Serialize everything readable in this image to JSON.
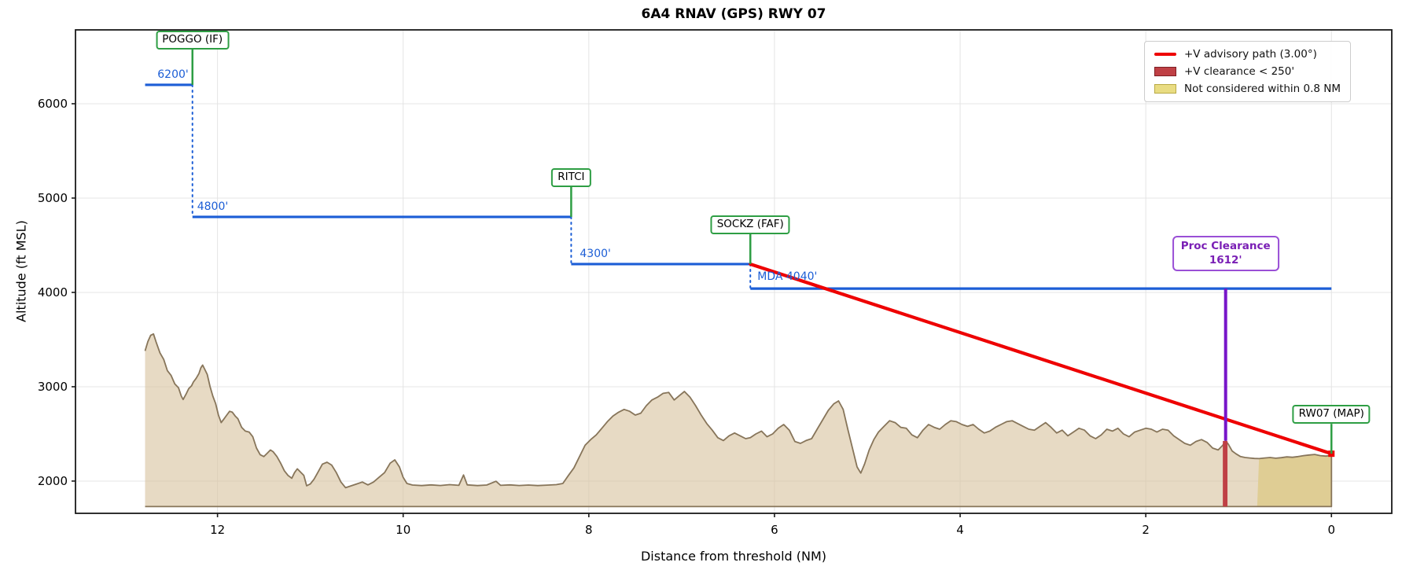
{
  "title": "6A4  RNAV (GPS) RWY 07",
  "axes": {
    "xlabel": "Distance from threshold (NM)",
    "ylabel": "Altitude (ft MSL)",
    "x_ticks": [
      12,
      10,
      8,
      6,
      4,
      2,
      0
    ],
    "y_ticks": [
      2000,
      3000,
      4000,
      5000,
      6000
    ],
    "xlim": [
      13.53,
      -0.65
    ],
    "ylim": [
      1658,
      6783
    ],
    "grid": true
  },
  "legend": {
    "position": "upper right",
    "items": [
      {
        "label": "+V advisory path (3.00°)",
        "swatch": "line",
        "fill": "#ee0000",
        "edge": "#ee0000"
      },
      {
        "label": "+V clearance < 250'",
        "swatch": "patch",
        "fill": "#bf4045",
        "edge": "#7e1f24"
      },
      {
        "label": "Not considered within 0.8 NM",
        "swatch": "patch",
        "fill": "#e9dc82",
        "edge": "#b9aa45"
      }
    ]
  },
  "colors": {
    "step_blue": "#1c5ed6",
    "fix_green": "#2e9e44",
    "advisory_red": "#ee0000",
    "band_red_fill": "#bf4045",
    "yellow_fill": "#e9dc82",
    "terrain_fill": "#d8c4a0",
    "terrain_edge": "#87755a",
    "purple": "#7715c9",
    "grid": "#e4e4e4",
    "axis": "#1a1a1a"
  },
  "chart_data": {
    "type": "line",
    "title": "6A4  RNAV (GPS) RWY 07",
    "xlabel": "Distance from threshold (NM)",
    "ylabel": "Altitude (ft MSL)",
    "x_axis_reversed": true,
    "step_segments": [
      {
        "label": "6200'",
        "from_nm": 12.78,
        "to_nm": 12.27,
        "alt_ft": 6200
      },
      {
        "label": "4800'",
        "from_nm": 12.27,
        "to_nm": 8.19,
        "alt_ft": 4800
      },
      {
        "label": "4300'",
        "from_nm": 8.19,
        "to_nm": 6.26,
        "alt_ft": 4300
      }
    ],
    "mda_segment": {
      "label": "MDA 4040'",
      "from_nm": 6.26,
      "to_nm": 0.0,
      "alt_ft": 4040
    },
    "fixes": [
      {
        "name": "POGGO (IF)",
        "nm": 12.27,
        "alt_ft": 6200
      },
      {
        "name": "RITCI",
        "nm": 8.19,
        "alt_ft": 4800
      },
      {
        "name": "SOCKZ (FAF)",
        "nm": 6.26,
        "alt_ft": 4300
      },
      {
        "name": "RW07 (MAP)",
        "nm": 0.0,
        "alt_ft": 2290
      }
    ],
    "advisory_path": {
      "angle_deg": 3.0,
      "from": {
        "nm": 6.26,
        "alt_ft": 4300
      },
      "to": {
        "nm": 0.0,
        "alt_ft": 2290
      }
    },
    "proc_clearance": {
      "label_line1": "Proc Clearance",
      "label_line2": "1612'",
      "nm": 1.14,
      "top_alt_ft": 4040,
      "bottom_alt_ft": 2428
    },
    "clearance_band": {
      "from_nm": 1.17,
      "to_nm": 1.12,
      "top_alt_ft": 2425,
      "bottom_alt_ft": 1730
    },
    "not_considered": {
      "from_nm": 0.8,
      "to_nm": 0.0
    },
    "terrain_baseline_ft": 1730,
    "terrain_profile": [
      [
        12.78,
        3380
      ],
      [
        12.75,
        3480
      ],
      [
        12.72,
        3545
      ],
      [
        12.69,
        3560
      ],
      [
        12.66,
        3470
      ],
      [
        12.62,
        3360
      ],
      [
        12.58,
        3290
      ],
      [
        12.54,
        3170
      ],
      [
        12.5,
        3120
      ],
      [
        12.46,
        3030
      ],
      [
        12.42,
        2990
      ],
      [
        12.39,
        2900
      ],
      [
        12.37,
        2865
      ],
      [
        12.34,
        2920
      ],
      [
        12.31,
        2980
      ],
      [
        12.28,
        3010
      ],
      [
        12.26,
        3050
      ],
      [
        12.23,
        3090
      ],
      [
        12.2,
        3140
      ],
      [
        12.18,
        3200
      ],
      [
        12.16,
        3230
      ],
      [
        12.13,
        3170
      ],
      [
        12.11,
        3130
      ],
      [
        12.08,
        3000
      ],
      [
        12.05,
        2900
      ],
      [
        12.02,
        2820
      ],
      [
        11.99,
        2700
      ],
      [
        11.96,
        2620
      ],
      [
        11.93,
        2660
      ],
      [
        11.9,
        2700
      ],
      [
        11.87,
        2740
      ],
      [
        11.84,
        2730
      ],
      [
        11.81,
        2690
      ],
      [
        11.78,
        2660
      ],
      [
        11.74,
        2570
      ],
      [
        11.7,
        2530
      ],
      [
        11.66,
        2520
      ],
      [
        11.62,
        2470
      ],
      [
        11.58,
        2350
      ],
      [
        11.54,
        2280
      ],
      [
        11.5,
        2260
      ],
      [
        11.46,
        2300
      ],
      [
        11.43,
        2330
      ],
      [
        11.4,
        2310
      ],
      [
        11.36,
        2260
      ],
      [
        11.32,
        2190
      ],
      [
        11.28,
        2110
      ],
      [
        11.24,
        2060
      ],
      [
        11.2,
        2030
      ],
      [
        11.17,
        2090
      ],
      [
        11.14,
        2130
      ],
      [
        11.1,
        2090
      ],
      [
        11.07,
        2060
      ],
      [
        11.04,
        1950
      ],
      [
        11.0,
        1970
      ],
      [
        10.96,
        2020
      ],
      [
        10.92,
        2090
      ],
      [
        10.87,
        2180
      ],
      [
        10.82,
        2200
      ],
      [
        10.77,
        2170
      ],
      [
        10.72,
        2090
      ],
      [
        10.67,
        1990
      ],
      [
        10.62,
        1930
      ],
      [
        10.56,
        1950
      ],
      [
        10.5,
        1970
      ],
      [
        10.44,
        1990
      ],
      [
        10.38,
        1960
      ],
      [
        10.32,
        1990
      ],
      [
        10.26,
        2040
      ],
      [
        10.2,
        2090
      ],
      [
        10.14,
        2190
      ],
      [
        10.09,
        2225
      ],
      [
        10.04,
        2150
      ],
      [
        10.0,
        2040
      ],
      [
        9.96,
        1975
      ],
      [
        9.9,
        1958
      ],
      [
        9.8,
        1952
      ],
      [
        9.7,
        1960
      ],
      [
        9.6,
        1953
      ],
      [
        9.5,
        1962
      ],
      [
        9.4,
        1955
      ],
      [
        9.35,
        2065
      ],
      [
        9.31,
        1960
      ],
      [
        9.2,
        1952
      ],
      [
        9.1,
        1958
      ],
      [
        9.0,
        1998
      ],
      [
        8.95,
        1955
      ],
      [
        8.85,
        1960
      ],
      [
        8.75,
        1953
      ],
      [
        8.65,
        1958
      ],
      [
        8.55,
        1952
      ],
      [
        8.45,
        1957
      ],
      [
        8.35,
        1962
      ],
      [
        8.28,
        1975
      ],
      [
        8.22,
        2060
      ],
      [
        8.16,
        2140
      ],
      [
        8.1,
        2260
      ],
      [
        8.04,
        2380
      ],
      [
        7.98,
        2440
      ],
      [
        7.92,
        2490
      ],
      [
        7.86,
        2560
      ],
      [
        7.8,
        2630
      ],
      [
        7.74,
        2690
      ],
      [
        7.68,
        2730
      ],
      [
        7.62,
        2760
      ],
      [
        7.56,
        2740
      ],
      [
        7.5,
        2700
      ],
      [
        7.44,
        2720
      ],
      [
        7.38,
        2800
      ],
      [
        7.32,
        2860
      ],
      [
        7.26,
        2890
      ],
      [
        7.2,
        2930
      ],
      [
        7.14,
        2940
      ],
      [
        7.08,
        2860
      ],
      [
        7.02,
        2910
      ],
      [
        6.97,
        2950
      ],
      [
        6.91,
        2890
      ],
      [
        6.85,
        2800
      ],
      [
        6.79,
        2700
      ],
      [
        6.73,
        2610
      ],
      [
        6.67,
        2540
      ],
      [
        6.61,
        2460
      ],
      [
        6.55,
        2430
      ],
      [
        6.49,
        2480
      ],
      [
        6.43,
        2510
      ],
      [
        6.37,
        2480
      ],
      [
        6.31,
        2450
      ],
      [
        6.26,
        2460
      ],
      [
        6.2,
        2500
      ],
      [
        6.14,
        2530
      ],
      [
        6.08,
        2470
      ],
      [
        6.02,
        2500
      ],
      [
        5.96,
        2560
      ],
      [
        5.9,
        2600
      ],
      [
        5.84,
        2540
      ],
      [
        5.78,
        2420
      ],
      [
        5.72,
        2400
      ],
      [
        5.66,
        2430
      ],
      [
        5.6,
        2450
      ],
      [
        5.54,
        2550
      ],
      [
        5.48,
        2650
      ],
      [
        5.42,
        2750
      ],
      [
        5.36,
        2820
      ],
      [
        5.31,
        2850
      ],
      [
        5.26,
        2760
      ],
      [
        5.21,
        2550
      ],
      [
        5.16,
        2350
      ],
      [
        5.11,
        2150
      ],
      [
        5.07,
        2085
      ],
      [
        5.03,
        2180
      ],
      [
        4.98,
        2330
      ],
      [
        4.93,
        2440
      ],
      [
        4.88,
        2520
      ],
      [
        4.82,
        2580
      ],
      [
        4.76,
        2640
      ],
      [
        4.7,
        2620
      ],
      [
        4.64,
        2570
      ],
      [
        4.58,
        2560
      ],
      [
        4.52,
        2490
      ],
      [
        4.46,
        2460
      ],
      [
        4.4,
        2540
      ],
      [
        4.34,
        2600
      ],
      [
        4.28,
        2570
      ],
      [
        4.22,
        2550
      ],
      [
        4.16,
        2600
      ],
      [
        4.1,
        2640
      ],
      [
        4.04,
        2630
      ],
      [
        3.98,
        2600
      ],
      [
        3.92,
        2580
      ],
      [
        3.86,
        2600
      ],
      [
        3.8,
        2550
      ],
      [
        3.74,
        2510
      ],
      [
        3.68,
        2530
      ],
      [
        3.62,
        2570
      ],
      [
        3.56,
        2600
      ],
      [
        3.5,
        2630
      ],
      [
        3.44,
        2640
      ],
      [
        3.38,
        2610
      ],
      [
        3.32,
        2580
      ],
      [
        3.26,
        2550
      ],
      [
        3.2,
        2540
      ],
      [
        3.14,
        2580
      ],
      [
        3.08,
        2620
      ],
      [
        3.02,
        2570
      ],
      [
        2.96,
        2510
      ],
      [
        2.9,
        2540
      ],
      [
        2.84,
        2480
      ],
      [
        2.78,
        2520
      ],
      [
        2.72,
        2560
      ],
      [
        2.66,
        2540
      ],
      [
        2.6,
        2480
      ],
      [
        2.54,
        2450
      ],
      [
        2.48,
        2490
      ],
      [
        2.42,
        2550
      ],
      [
        2.36,
        2530
      ],
      [
        2.3,
        2560
      ],
      [
        2.24,
        2500
      ],
      [
        2.18,
        2470
      ],
      [
        2.12,
        2520
      ],
      [
        2.06,
        2540
      ],
      [
        2.0,
        2560
      ],
      [
        1.94,
        2550
      ],
      [
        1.88,
        2520
      ],
      [
        1.82,
        2550
      ],
      [
        1.76,
        2540
      ],
      [
        1.7,
        2480
      ],
      [
        1.64,
        2440
      ],
      [
        1.58,
        2400
      ],
      [
        1.52,
        2380
      ],
      [
        1.46,
        2420
      ],
      [
        1.4,
        2440
      ],
      [
        1.34,
        2410
      ],
      [
        1.28,
        2350
      ],
      [
        1.22,
        2330
      ],
      [
        1.17,
        2380
      ],
      [
        1.14,
        2428
      ],
      [
        1.11,
        2390
      ],
      [
        1.07,
        2320
      ],
      [
        1.03,
        2290
      ],
      [
        0.98,
        2260
      ],
      [
        0.93,
        2250
      ],
      [
        0.88,
        2245
      ],
      [
        0.83,
        2240
      ],
      [
        0.78,
        2238
      ],
      [
        0.72,
        2245
      ],
      [
        0.66,
        2250
      ],
      [
        0.6,
        2242
      ],
      [
        0.54,
        2248
      ],
      [
        0.48,
        2256
      ],
      [
        0.42,
        2252
      ],
      [
        0.36,
        2260
      ],
      [
        0.3,
        2270
      ],
      [
        0.24,
        2276
      ],
      [
        0.18,
        2282
      ],
      [
        0.12,
        2270
      ],
      [
        0.06,
        2265
      ],
      [
        0.0,
        2272
      ]
    ]
  }
}
